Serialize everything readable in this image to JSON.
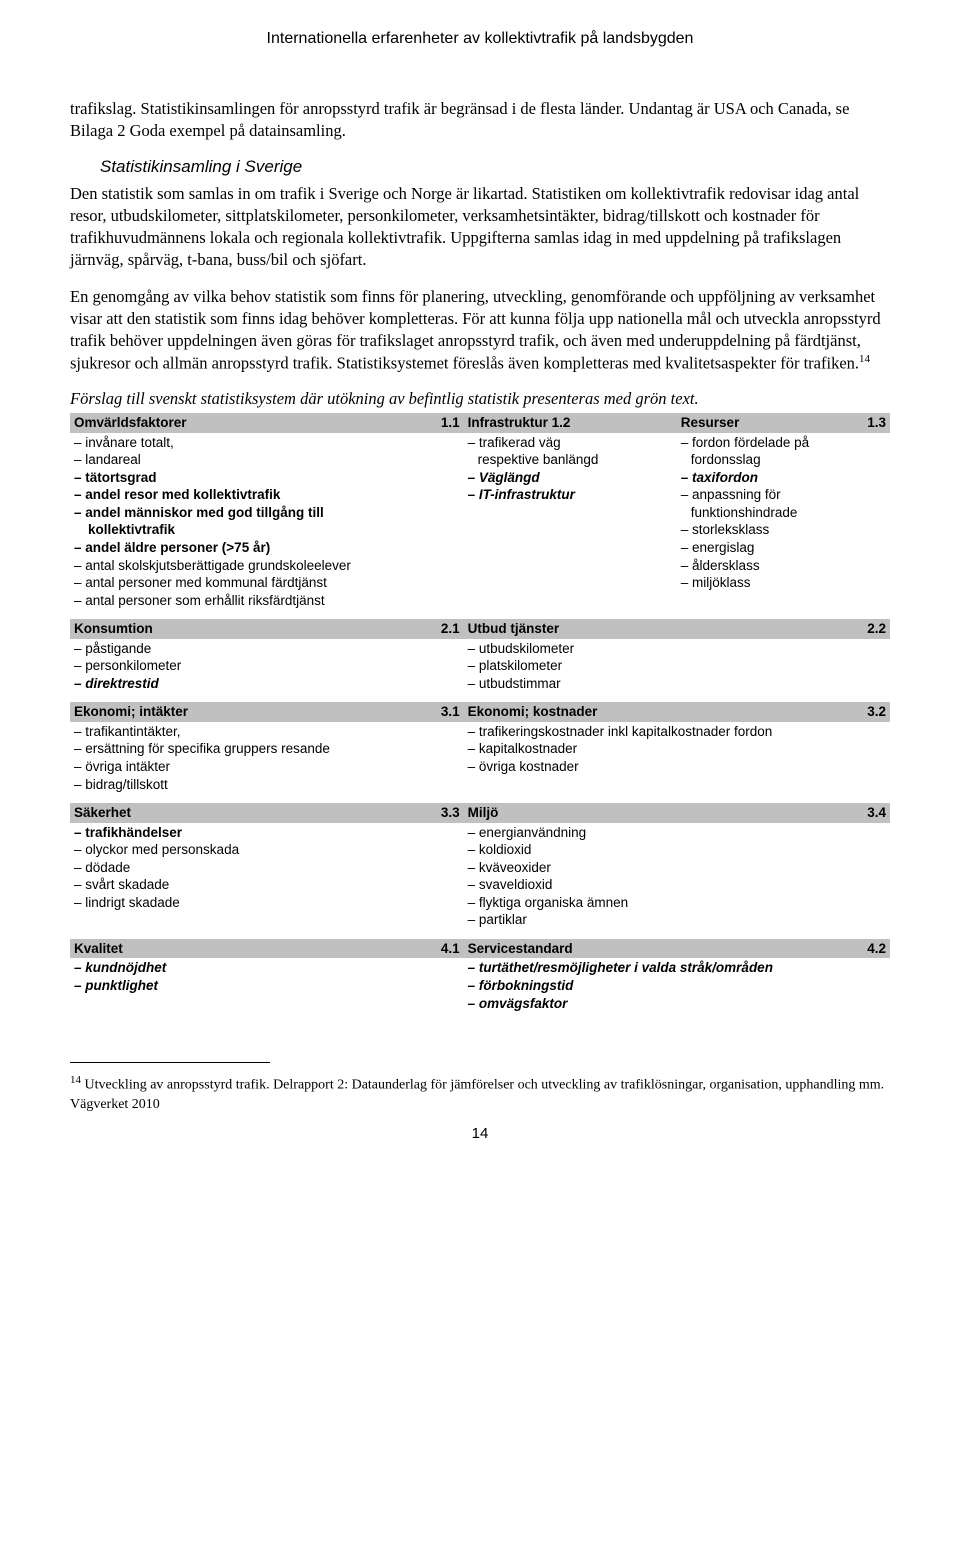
{
  "header": "Internationella erfarenheter av kollektivtrafik på landsbygden",
  "para1": "trafikslag. Statistikinsamlingen för anropsstyrd trafik är begränsad i de flesta länder. Undantag är USA och Canada, se Bilaga 2 Goda exempel på datainsamling.",
  "heading1": "Statistikinsamling i Sverige",
  "para2": "Den statistik som samlas in om trafik i Sverige och Norge är likartad. Statistiken om kollektivtrafik redovisar idag antal resor, utbudskilometer, sittplatskilometer, personkilometer, verksamhetsintäkter, bidrag/tillskott och kostnader för trafikhuvudmännens lokala och regionala kollektivtrafik. Uppgifterna samlas idag in med uppdelning på trafikslagen järnväg, spårväg, t-bana, buss/bil och sjöfart.",
  "para3a": "En genomgång av vilka behov statistik som finns för planering, utveckling, genomförande och uppföljning av verksamhet visar att den statistik som finns idag behöver kompletteras. För att kunna följa upp nationella mål och utveckla anropsstyrd trafik behöver uppdelningen även göras för trafikslaget anropsstyrd trafik, och även med underuppdelning på färdtjänst, sjukresor och allmän anropsstyrd trafik. Statistiksystemet föreslås även kompletteras med kvalitetsaspekter för trafiken.",
  "fn_marker": "14",
  "caption": "Förslag till svenskt statistiksystem där utökning av befintlig statistik presenteras med grön text.",
  "table": {
    "row1": {
      "c1": {
        "title": "Omvärldsfaktorer",
        "num": "1.1",
        "items": [
          {
            "t": "– invånare totalt,",
            "s": ""
          },
          {
            "t": "– landareal",
            "s": ""
          },
          {
            "t": "– tätortsgrad",
            "s": "bold"
          },
          {
            "t": "– andel resor med kollektivtrafik",
            "s": "bold"
          },
          {
            "t": "– andel människor med god tillgång till",
            "s": "bold"
          },
          {
            "t": "kollektivtrafik",
            "s": "bold sub"
          },
          {
            "t": "– andel äldre personer (>75 år)",
            "s": "bold"
          },
          {
            "t": "– antal skolskjutsberättigade grundskoleelever",
            "s": ""
          },
          {
            "t": "– antal personer med kommunal färdtjänst",
            "s": ""
          },
          {
            "t": "– antal personer som erhållit riksfärdtjänst",
            "s": ""
          }
        ]
      },
      "c2": {
        "title": "Infrastruktur 1.2",
        "num": "",
        "items": [
          {
            "t": "– trafikerad väg",
            "s": ""
          },
          {
            "t": "respektive banlängd",
            "s": "sub-plain"
          },
          {
            "t": "– Väglängd",
            "s": "italic"
          },
          {
            "t": "– IT-infrastruktur",
            "s": "italic"
          }
        ]
      },
      "c3": {
        "title": "Resurser",
        "num": "1.3",
        "items": [
          {
            "t": "– fordon fördelade på",
            "s": ""
          },
          {
            "t": "fordonsslag",
            "s": "sub-plain"
          },
          {
            "t": "– taxifordon",
            "s": "italic"
          },
          {
            "t": "– anpassning för",
            "s": ""
          },
          {
            "t": "funktionshindrade",
            "s": "sub-plain"
          },
          {
            "t": "– storleksklass",
            "s": ""
          },
          {
            "t": "– energislag",
            "s": ""
          },
          {
            "t": "– åldersklass",
            "s": ""
          },
          {
            "t": "– miljöklass",
            "s": ""
          }
        ]
      }
    },
    "row2": {
      "c1": {
        "title": "Konsumtion",
        "num": "2.1",
        "items": [
          {
            "t": "– påstigande",
            "s": ""
          },
          {
            "t": "– personkilometer",
            "s": ""
          },
          {
            "t": "– direktrestid",
            "s": "italic"
          }
        ]
      },
      "c2": {
        "title": "Utbud tjänster",
        "num": "2.2",
        "items": [
          {
            "t": "– utbudskilometer",
            "s": ""
          },
          {
            "t": "– platskilometer",
            "s": ""
          },
          {
            "t": "– utbudstimmar",
            "s": ""
          }
        ]
      }
    },
    "row3": {
      "c1": {
        "title": "Ekonomi; intäkter",
        "num": "3.1",
        "items": [
          {
            "t": "– trafikantintäkter,",
            "s": ""
          },
          {
            "t": "– ersättning för specifika gruppers resande",
            "s": ""
          },
          {
            "t": "– övriga intäkter",
            "s": ""
          },
          {
            "t": "– bidrag/tillskott",
            "s": ""
          }
        ]
      },
      "c2": {
        "title": "Ekonomi; kostnader",
        "num": "3.2",
        "items": [
          {
            "t": "– trafikeringskostnader inkl kapitalkostnader fordon",
            "s": ""
          },
          {
            "t": "– kapitalkostnader",
            "s": ""
          },
          {
            "t": "– övriga kostnader",
            "s": ""
          }
        ]
      }
    },
    "row4": {
      "c1": {
        "title": "Säkerhet",
        "num": "3.3",
        "items": [
          {
            "t": "– trafikhändelser",
            "s": "bold"
          },
          {
            "t": "– olyckor med personskada",
            "s": ""
          },
          {
            "t": "– dödade",
            "s": ""
          },
          {
            "t": "– svårt skadade",
            "s": ""
          },
          {
            "t": "– lindrigt skadade",
            "s": ""
          }
        ]
      },
      "c2": {
        "title": "Miljö",
        "num": "3.4",
        "items": [
          {
            "t": "– energianvändning",
            "s": ""
          },
          {
            "t": "– koldioxid",
            "s": ""
          },
          {
            "t": "– kväveoxider",
            "s": ""
          },
          {
            "t": "– svaveldioxid",
            "s": ""
          },
          {
            "t": "– flyktiga organiska ämnen",
            "s": ""
          },
          {
            "t": "– partiklar",
            "s": ""
          }
        ]
      }
    },
    "row5": {
      "c1": {
        "title": "Kvalitet",
        "num": "4.1",
        "items": [
          {
            "t": "– kundnöjdhet",
            "s": "italic"
          },
          {
            "t": "– punktlighet",
            "s": "italic"
          }
        ]
      },
      "c2": {
        "title": "Servicestandard",
        "num": "4.2",
        "items": [
          {
            "t": "– turtäthet/resmöjligheter i valda stråk/områden",
            "s": "italic"
          },
          {
            "t": "– förbokningstid",
            "s": "italic"
          },
          {
            "t": "– omvägsfaktor",
            "s": "italic"
          }
        ]
      }
    }
  },
  "footnote_num": "14",
  "footnote": " Utveckling av anropsstyrd trafik. Delrapport 2: Dataunderlag för jämförelser och utveckling av trafiklösningar, organisation, upphandling mm. Vägverket 2010",
  "page_num": "14"
}
